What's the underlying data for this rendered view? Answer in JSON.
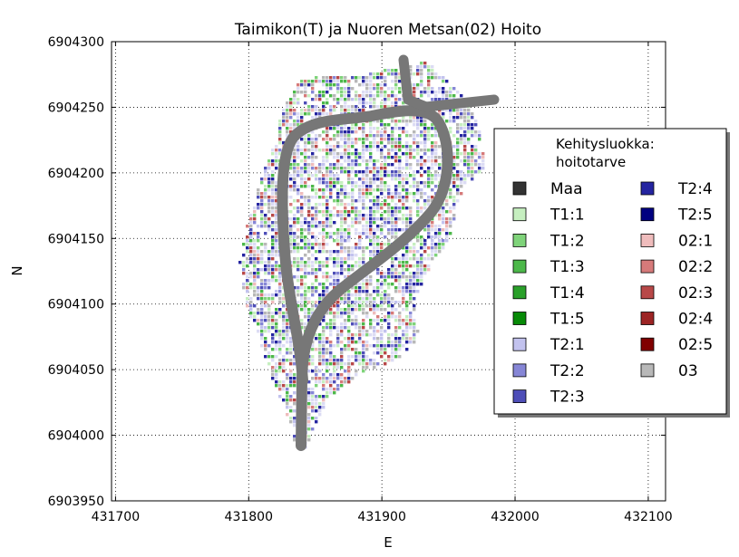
{
  "chart_data": {
    "type": "scatter",
    "title": "Taimikon(T) ja Nuoren Metsan(02) Hoito",
    "xlabel": "E",
    "ylabel": "N",
    "xlim": [
      431697,
      432113
    ],
    "ylim": [
      6903950,
      6904300
    ],
    "x_ticks": [
      "431700",
      "431800",
      "431900",
      "432000",
      "432100"
    ],
    "y_ticks": [
      "6903950",
      "6904000",
      "6904050",
      "6904100",
      "6904150",
      "6904200",
      "6904250",
      "6904300"
    ],
    "x_tick_values": [
      431700,
      431800,
      431900,
      432000,
      432100
    ],
    "y_tick_values": [
      6903950,
      6904000,
      6904050,
      6904100,
      6904150,
      6904200,
      6904250,
      6904300
    ],
    "grid": true,
    "legend": {
      "title_line1": "Kehitysluokka:",
      "title_line2": "hoitotarve",
      "placement": "right",
      "columns": 2
    },
    "series": [
      {
        "name": "Maa",
        "color": "#333333"
      },
      {
        "name": "T1:1",
        "color": "#c6efc0"
      },
      {
        "name": "T1:2",
        "color": "#7fd37a"
      },
      {
        "name": "T1:3",
        "color": "#4cb84a"
      },
      {
        "name": "T1:4",
        "color": "#2aa02a"
      },
      {
        "name": "T1:5",
        "color": "#078a07"
      },
      {
        "name": "T2:1",
        "color": "#c2c2ee"
      },
      {
        "name": "T2:2",
        "color": "#8686d6"
      },
      {
        "name": "T2:3",
        "color": "#4e4eb8"
      },
      {
        "name": "T2:4",
        "color": "#2424a0"
      },
      {
        "name": "T2:5",
        "color": "#000080"
      },
      {
        "name": "02:1",
        "color": "#efbcbc"
      },
      {
        "name": "02:2",
        "color": "#d67a7a"
      },
      {
        "name": "02:3",
        "color": "#b84848"
      },
      {
        "name": "02:4",
        "color": "#9c2424"
      },
      {
        "name": "02:5",
        "color": "#800000"
      },
      {
        "name": "03",
        "color": "#b8b8b8"
      }
    ],
    "road_color": "#777777"
  }
}
